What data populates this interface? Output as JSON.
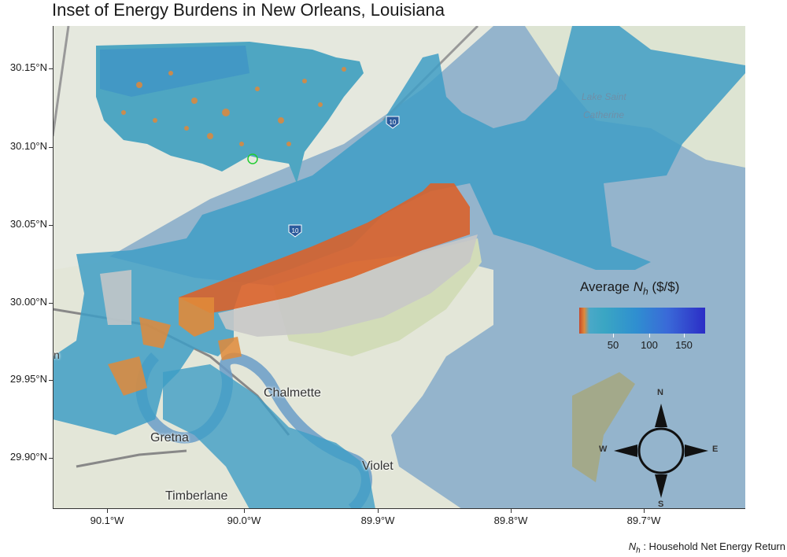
{
  "title": "Inset of Energy Burdens in New Orleans, Louisiana",
  "y_ticks": [
    "30.15°N",
    "30.10°N",
    "30.05°N",
    "30.00°N",
    "29.95°N",
    "29.90°N"
  ],
  "x_ticks": [
    "90.1°W",
    "90.0°W",
    "89.9°W",
    "89.8°W",
    "89.7°W"
  ],
  "legend": {
    "title_prefix": "Average ",
    "title_symbol": "N",
    "title_subscript": "h",
    "title_suffix": " ($/$)",
    "ticks": [
      "50",
      "100",
      "150"
    ]
  },
  "caption": {
    "symbol": "N",
    "subscript": "h",
    "text": " : Household Net Energy Return"
  },
  "map_labels": {
    "chalmette": "Chalmette",
    "gretna": "Gretna",
    "violet": "Violet",
    "timberlane": "Timberlane",
    "lake": "Lake Saint",
    "lake2": "Catherine",
    "edge_n": "n",
    "shield1": "10",
    "shield2": "10"
  },
  "compass": {
    "n": "N",
    "s": "S",
    "e": "E",
    "w": "W"
  },
  "colors": {
    "water": "#96b7cf",
    "land": "#dfe7cf",
    "low_burden": "#d9622b",
    "mid": "#4aa8c8",
    "high": "#2c2dc6"
  }
}
